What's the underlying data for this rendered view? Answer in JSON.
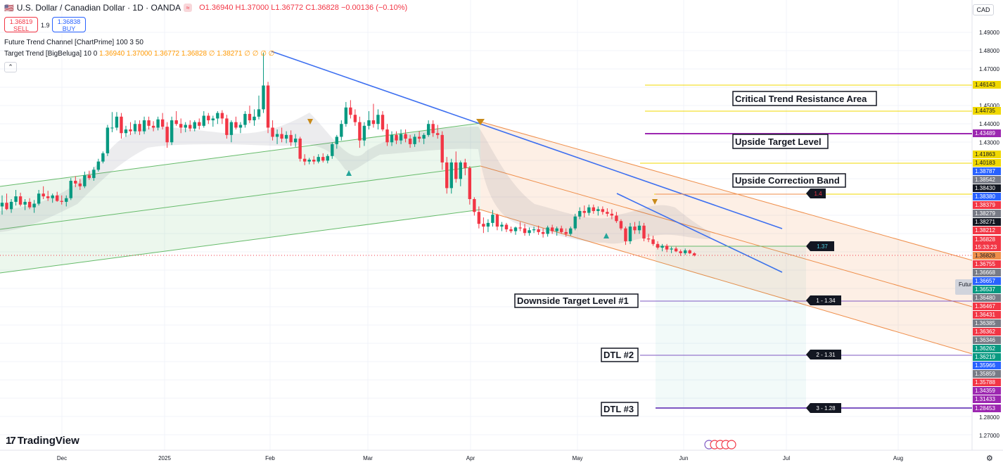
{
  "header": {
    "symbol": "U.S. Dollar / Canadian Dollar · 1D · OANDA",
    "flag_icon": "us-ca-flag-icon",
    "ohlc": "O1.36940 H1.37000 L1.36772 C1.36828 −0.00136 (−0.10%)"
  },
  "trade": {
    "sell_price": "1.36819",
    "sell_label": "SELL",
    "spread": "1.9",
    "buy_price": "1.36838",
    "buy_label": "BUY"
  },
  "indicators": {
    "ind1": "Future Trend Channel [ChartPrime] 100 3 50",
    "ind2_name": "Target Trend [BigBeluga] 10 0",
    "ind2_values": "1.36940 1.37000 1.36772 1.36828 ∅ 1.38271 ∅ ∅ ∅ ∅"
  },
  "currency": "CAD",
  "branding": "TradingView",
  "colors": {
    "up": "#089981",
    "down": "#f23645",
    "trendline": "#3d6ff0",
    "orange": "#ef8e4a",
    "green_channel": "#66bb6a",
    "yellow": "#f0d800",
    "purple": "#9c27b0"
  },
  "chart_data": {
    "type": "candlestick",
    "y_axis_ticks": [
      1.49,
      1.48,
      1.47,
      1.45,
      1.44,
      1.43,
      1.28,
      1.27
    ],
    "x_axis_labels": [
      "Dec",
      "2025",
      "Feb",
      "Mar",
      "Apr",
      "May",
      "Jun",
      "Jul",
      "Aug"
    ],
    "current_price": "1.36828",
    "countdown": "15:33:23",
    "price_labels": [
      {
        "value": "1.46143",
        "bg": "#f0d800",
        "fg": "#131722"
      },
      {
        "value": "1.44735",
        "bg": "#f0d800",
        "fg": "#131722"
      },
      {
        "value": "1.43489",
        "bg": "#9c27b0",
        "fg": "#ffffff"
      },
      {
        "value": "1.41863",
        "bg": "#f0d800",
        "fg": "#131722"
      },
      {
        "value": "1.40183",
        "bg": "#f0d800",
        "fg": "#131722"
      },
      {
        "value": "1.38787",
        "bg": "#2962ff",
        "fg": "#ffffff"
      },
      {
        "value": "1.38542",
        "bg": "#787b86",
        "fg": "#ffffff"
      },
      {
        "value": "1.38430",
        "bg": "#131722",
        "fg": "#ffffff"
      },
      {
        "value": "1.38380",
        "bg": "#2962ff",
        "fg": "#ffffff"
      },
      {
        "value": "1.38379",
        "bg": "#f23645",
        "fg": "#ffffff"
      },
      {
        "value": "1.38279",
        "bg": "#787b86",
        "fg": "#ffffff"
      },
      {
        "value": "1.38271",
        "bg": "#131722",
        "fg": "#ffffff"
      },
      {
        "value": "1.38212",
        "bg": "#f23645",
        "fg": "#ffffff"
      },
      {
        "value": "1.36828",
        "bg": "#f23645",
        "fg": "#ffffff"
      },
      {
        "value": "1.36828",
        "bg": "#ef8e4a",
        "fg": "#131722"
      },
      {
        "value": "1.36755",
        "bg": "#f23645",
        "fg": "#ffffff"
      },
      {
        "value": "1.36668",
        "bg": "#787b86",
        "fg": "#ffffff"
      },
      {
        "value": "1.36657",
        "bg": "#2962ff",
        "fg": "#ffffff"
      },
      {
        "value": "1.36537",
        "bg": "#089981",
        "fg": "#ffffff"
      },
      {
        "value": "1.36480",
        "bg": "#787b86",
        "fg": "#ffffff"
      },
      {
        "value": "1.36467",
        "bg": "#f23645",
        "fg": "#ffffff"
      },
      {
        "value": "1.36431",
        "bg": "#f23645",
        "fg": "#ffffff"
      },
      {
        "value": "1.36385",
        "bg": "#787b86",
        "fg": "#ffffff"
      },
      {
        "value": "1.36362",
        "bg": "#f23645",
        "fg": "#ffffff"
      },
      {
        "value": "1.36346",
        "bg": "#787b86",
        "fg": "#ffffff"
      },
      {
        "value": "1.36262",
        "bg": "#089981",
        "fg": "#ffffff"
      },
      {
        "value": "1.36219",
        "bg": "#089981",
        "fg": "#ffffff"
      },
      {
        "value": "1.35966",
        "bg": "#2962ff",
        "fg": "#ffffff"
      },
      {
        "value": "1.35859",
        "bg": "#787b86",
        "fg": "#ffffff"
      },
      {
        "value": "1.35788",
        "bg": "#f23645",
        "fg": "#ffffff"
      },
      {
        "value": "1.34359",
        "bg": "#9c27b0",
        "fg": "#ffffff"
      },
      {
        "value": "1.31433",
        "bg": "#9c27b0",
        "fg": "#ffffff"
      },
      {
        "value": "1.28453",
        "bg": "#9c27b0",
        "fg": "#ffffff"
      }
    ],
    "annotations": [
      "Critical Trend Resistance Area",
      "Upside Target Level",
      "Upside Correction Band",
      "Downside Target Level #1",
      "DTL #2",
      "DTL #3"
    ],
    "target_tags": [
      "1.4",
      "1.37",
      "1 - 1.34",
      "2 - 1.31",
      "3 - 1.28"
    ],
    "channel_label": "Futur",
    "candles": [
      {
        "o": 1.395,
        "h": 1.401,
        "l": 1.3905,
        "c": 1.397
      },
      {
        "o": 1.397,
        "h": 1.402,
        "l": 1.393,
        "c": 1.3935
      },
      {
        "o": 1.3935,
        "h": 1.399,
        "l": 1.3915,
        "c": 1.3975
      },
      {
        "o": 1.3975,
        "h": 1.404,
        "l": 1.3955,
        "c": 1.4005
      },
      {
        "o": 1.4005,
        "h": 1.4025,
        "l": 1.395,
        "c": 1.396
      },
      {
        "o": 1.396,
        "h": 1.399,
        "l": 1.393,
        "c": 1.3975
      },
      {
        "o": 1.3975,
        "h": 1.3995,
        "l": 1.3935,
        "c": 1.3945
      },
      {
        "o": 1.3945,
        "h": 1.3985,
        "l": 1.3915,
        "c": 1.3965
      },
      {
        "o": 1.3965,
        "h": 1.404,
        "l": 1.3955,
        "c": 1.402
      },
      {
        "o": 1.402,
        "h": 1.406,
        "l": 1.399,
        "c": 1.4005
      },
      {
        "o": 1.4005,
        "h": 1.4035,
        "l": 1.398,
        "c": 1.3995
      },
      {
        "o": 1.3995,
        "h": 1.402,
        "l": 1.397,
        "c": 1.401
      },
      {
        "o": 1.401,
        "h": 1.403,
        "l": 1.3975,
        "c": 1.398
      },
      {
        "o": 1.398,
        "h": 1.401,
        "l": 1.396,
        "c": 1.3975
      },
      {
        "o": 1.3975,
        "h": 1.401,
        "l": 1.395,
        "c": 1.3995
      },
      {
        "o": 1.3995,
        "h": 1.4105,
        "l": 1.3985,
        "c": 1.409
      },
      {
        "o": 1.409,
        "h": 1.4115,
        "l": 1.4055,
        "c": 1.4075
      },
      {
        "o": 1.4075,
        "h": 1.41,
        "l": 1.404,
        "c": 1.406
      },
      {
        "o": 1.406,
        "h": 1.414,
        "l": 1.405,
        "c": 1.412
      },
      {
        "o": 1.412,
        "h": 1.4145,
        "l": 1.4095,
        "c": 1.4105
      },
      {
        "o": 1.4105,
        "h": 1.4165,
        "l": 1.409,
        "c": 1.415
      },
      {
        "o": 1.415,
        "h": 1.421,
        "l": 1.414,
        "c": 1.4195
      },
      {
        "o": 1.4195,
        "h": 1.425,
        "l": 1.4185,
        "c": 1.424
      },
      {
        "o": 1.424,
        "h": 1.4395,
        "l": 1.4225,
        "c": 1.438
      },
      {
        "o": 1.438,
        "h": 1.4465,
        "l": 1.4355,
        "c": 1.438
      },
      {
        "o": 1.438,
        "h": 1.4465,
        "l": 1.4365,
        "c": 1.444
      },
      {
        "o": 1.444,
        "h": 1.446,
        "l": 1.432,
        "c": 1.435
      },
      {
        "o": 1.435,
        "h": 1.439,
        "l": 1.433,
        "c": 1.437
      },
      {
        "o": 1.437,
        "h": 1.441,
        "l": 1.434,
        "c": 1.436
      },
      {
        "o": 1.436,
        "h": 1.442,
        "l": 1.4345,
        "c": 1.44
      },
      {
        "o": 1.44,
        "h": 1.442,
        "l": 1.434,
        "c": 1.436
      },
      {
        "o": 1.436,
        "h": 1.444,
        "l": 1.4345,
        "c": 1.442
      },
      {
        "o": 1.442,
        "h": 1.444,
        "l": 1.437,
        "c": 1.439
      },
      {
        "o": 1.439,
        "h": 1.4415,
        "l": 1.436,
        "c": 1.438
      },
      {
        "o": 1.438,
        "h": 1.444,
        "l": 1.4365,
        "c": 1.4425
      },
      {
        "o": 1.4425,
        "h": 1.446,
        "l": 1.437,
        "c": 1.4385
      },
      {
        "o": 1.4385,
        "h": 1.441,
        "l": 1.427,
        "c": 1.43
      },
      {
        "o": 1.43,
        "h": 1.444,
        "l": 1.4285,
        "c": 1.442
      },
      {
        "o": 1.442,
        "h": 1.447,
        "l": 1.439,
        "c": 1.44
      },
      {
        "o": 1.44,
        "h": 1.443,
        "l": 1.435,
        "c": 1.438
      },
      {
        "o": 1.438,
        "h": 1.441,
        "l": 1.4355,
        "c": 1.4395
      },
      {
        "o": 1.4395,
        "h": 1.442,
        "l": 1.436,
        "c": 1.4375
      },
      {
        "o": 1.4375,
        "h": 1.442,
        "l": 1.436,
        "c": 1.441
      },
      {
        "o": 1.441,
        "h": 1.443,
        "l": 1.437,
        "c": 1.439
      },
      {
        "o": 1.439,
        "h": 1.447,
        "l": 1.438,
        "c": 1.4445
      },
      {
        "o": 1.4445,
        "h": 1.446,
        "l": 1.44,
        "c": 1.442
      },
      {
        "o": 1.442,
        "h": 1.4445,
        "l": 1.4385,
        "c": 1.443
      },
      {
        "o": 1.443,
        "h": 1.447,
        "l": 1.44,
        "c": 1.446
      },
      {
        "o": 1.446,
        "h": 1.4475,
        "l": 1.44,
        "c": 1.443
      },
      {
        "o": 1.443,
        "h": 1.445,
        "l": 1.432,
        "c": 1.434
      },
      {
        "o": 1.434,
        "h": 1.442,
        "l": 1.43,
        "c": 1.441
      },
      {
        "o": 1.441,
        "h": 1.444,
        "l": 1.437,
        "c": 1.438
      },
      {
        "o": 1.438,
        "h": 1.441,
        "l": 1.435,
        "c": 1.4395
      },
      {
        "o": 1.4395,
        "h": 1.447,
        "l": 1.438,
        "c": 1.4455
      },
      {
        "o": 1.4455,
        "h": 1.45,
        "l": 1.4405,
        "c": 1.442
      },
      {
        "o": 1.442,
        "h": 1.448,
        "l": 1.439,
        "c": 1.444
      },
      {
        "o": 1.444,
        "h": 1.4555,
        "l": 1.4425,
        "c": 1.448
      },
      {
        "o": 1.448,
        "h": 1.479,
        "l": 1.446,
        "c": 1.461
      },
      {
        "o": 1.461,
        "h": 1.463,
        "l": 1.435,
        "c": 1.438
      },
      {
        "o": 1.438,
        "h": 1.442,
        "l": 1.431,
        "c": 1.433
      },
      {
        "o": 1.433,
        "h": 1.437,
        "l": 1.429,
        "c": 1.4345
      },
      {
        "o": 1.4345,
        "h": 1.438,
        "l": 1.43,
        "c": 1.432
      },
      {
        "o": 1.432,
        "h": 1.436,
        "l": 1.4295,
        "c": 1.434
      },
      {
        "o": 1.434,
        "h": 1.4365,
        "l": 1.428,
        "c": 1.43
      },
      {
        "o": 1.43,
        "h": 1.4345,
        "l": 1.4275,
        "c": 1.432
      },
      {
        "o": 1.432,
        "h": 1.433,
        "l": 1.4195,
        "c": 1.421
      },
      {
        "o": 1.421,
        "h": 1.4235,
        "l": 1.4175,
        "c": 1.4195
      },
      {
        "o": 1.4195,
        "h": 1.4215,
        "l": 1.418,
        "c": 1.4205
      },
      {
        "o": 1.4205,
        "h": 1.4225,
        "l": 1.418,
        "c": 1.4195
      },
      {
        "o": 1.4195,
        "h": 1.4235,
        "l": 1.4185,
        "c": 1.422
      },
      {
        "o": 1.422,
        "h": 1.424,
        "l": 1.419,
        "c": 1.42
      },
      {
        "o": 1.42,
        "h": 1.4235,
        "l": 1.4185,
        "c": 1.4225
      },
      {
        "o": 1.4225,
        "h": 1.43,
        "l": 1.421,
        "c": 1.429
      },
      {
        "o": 1.429,
        "h": 1.434,
        "l": 1.4265,
        "c": 1.433
      },
      {
        "o": 1.433,
        "h": 1.442,
        "l": 1.431,
        "c": 1.44
      },
      {
        "o": 1.44,
        "h": 1.452,
        "l": 1.4385,
        "c": 1.449
      },
      {
        "o": 1.449,
        "h": 1.453,
        "l": 1.443,
        "c": 1.445
      },
      {
        "o": 1.445,
        "h": 1.448,
        "l": 1.439,
        "c": 1.441
      },
      {
        "o": 1.441,
        "h": 1.444,
        "l": 1.427,
        "c": 1.431
      },
      {
        "o": 1.431,
        "h": 1.441,
        "l": 1.428,
        "c": 1.439
      },
      {
        "o": 1.439,
        "h": 1.447,
        "l": 1.437,
        "c": 1.442
      },
      {
        "o": 1.442,
        "h": 1.451,
        "l": 1.438,
        "c": 1.44
      },
      {
        "o": 1.44,
        "h": 1.448,
        "l": 1.437,
        "c": 1.445
      },
      {
        "o": 1.445,
        "h": 1.447,
        "l": 1.436,
        "c": 1.437
      },
      {
        "o": 1.437,
        "h": 1.44,
        "l": 1.428,
        "c": 1.43
      },
      {
        "o": 1.43,
        "h": 1.436,
        "l": 1.428,
        "c": 1.434
      },
      {
        "o": 1.434,
        "h": 1.436,
        "l": 1.429,
        "c": 1.431
      },
      {
        "o": 1.431,
        "h": 1.437,
        "l": 1.429,
        "c": 1.4345
      },
      {
        "o": 1.4345,
        "h": 1.437,
        "l": 1.43,
        "c": 1.432
      },
      {
        "o": 1.432,
        "h": 1.434,
        "l": 1.427,
        "c": 1.429
      },
      {
        "o": 1.429,
        "h": 1.4345,
        "l": 1.4275,
        "c": 1.433
      },
      {
        "o": 1.433,
        "h": 1.436,
        "l": 1.43,
        "c": 1.432
      },
      {
        "o": 1.432,
        "h": 1.435,
        "l": 1.429,
        "c": 1.434
      },
      {
        "o": 1.434,
        "h": 1.442,
        "l": 1.433,
        "c": 1.44
      },
      {
        "o": 1.44,
        "h": 1.442,
        "l": 1.433,
        "c": 1.435
      },
      {
        "o": 1.435,
        "h": 1.4395,
        "l": 1.432,
        "c": 1.434
      },
      {
        "o": 1.434,
        "h": 1.436,
        "l": 1.415,
        "c": 1.419
      },
      {
        "o": 1.419,
        "h": 1.422,
        "l": 1.402,
        "c": 1.405
      },
      {
        "o": 1.405,
        "h": 1.421,
        "l": 1.402,
        "c": 1.419
      },
      {
        "o": 1.419,
        "h": 1.425,
        "l": 1.408,
        "c": 1.41
      },
      {
        "o": 1.41,
        "h": 1.42,
        "l": 1.406,
        "c": 1.419
      },
      {
        "o": 1.419,
        "h": 1.421,
        "l": 1.412,
        "c": 1.416
      },
      {
        "o": 1.416,
        "h": 1.417,
        "l": 1.396,
        "c": 1.399
      },
      {
        "o": 1.399,
        "h": 1.4,
        "l": 1.39,
        "c": 1.392
      },
      {
        "o": 1.392,
        "h": 1.395,
        "l": 1.383,
        "c": 1.3855
      },
      {
        "o": 1.3855,
        "h": 1.389,
        "l": 1.3805,
        "c": 1.384
      },
      {
        "o": 1.384,
        "h": 1.388,
        "l": 1.381,
        "c": 1.386
      },
      {
        "o": 1.386,
        "h": 1.393,
        "l": 1.384,
        "c": 1.3905
      },
      {
        "o": 1.3905,
        "h": 1.391,
        "l": 1.382,
        "c": 1.384
      },
      {
        "o": 1.384,
        "h": 1.3865,
        "l": 1.3815,
        "c": 1.385
      },
      {
        "o": 1.385,
        "h": 1.386,
        "l": 1.381,
        "c": 1.3825
      },
      {
        "o": 1.3825,
        "h": 1.384,
        "l": 1.3805,
        "c": 1.3815
      },
      {
        "o": 1.3815,
        "h": 1.384,
        "l": 1.3795,
        "c": 1.3835
      },
      {
        "o": 1.3835,
        "h": 1.3865,
        "l": 1.3815,
        "c": 1.383
      },
      {
        "o": 1.383,
        "h": 1.3855,
        "l": 1.379,
        "c": 1.3805
      },
      {
        "o": 1.3805,
        "h": 1.3835,
        "l": 1.379,
        "c": 1.382
      },
      {
        "o": 1.382,
        "h": 1.384,
        "l": 1.3805,
        "c": 1.3825
      },
      {
        "o": 1.3825,
        "h": 1.3845,
        "l": 1.3795,
        "c": 1.381
      },
      {
        "o": 1.381,
        "h": 1.383,
        "l": 1.378,
        "c": 1.38
      },
      {
        "o": 1.38,
        "h": 1.3845,
        "l": 1.3785,
        "c": 1.3835
      },
      {
        "o": 1.3835,
        "h": 1.385,
        "l": 1.38,
        "c": 1.3815
      },
      {
        "o": 1.3815,
        "h": 1.384,
        "l": 1.379,
        "c": 1.383
      },
      {
        "o": 1.383,
        "h": 1.3845,
        "l": 1.38,
        "c": 1.381
      },
      {
        "o": 1.381,
        "h": 1.383,
        "l": 1.3785,
        "c": 1.38
      },
      {
        "o": 1.38,
        "h": 1.384,
        "l": 1.379,
        "c": 1.383
      },
      {
        "o": 1.383,
        "h": 1.391,
        "l": 1.382,
        "c": 1.3895
      },
      {
        "o": 1.3895,
        "h": 1.3945,
        "l": 1.388,
        "c": 1.3925
      },
      {
        "o": 1.3925,
        "h": 1.3955,
        "l": 1.389,
        "c": 1.3915
      },
      {
        "o": 1.3915,
        "h": 1.396,
        "l": 1.39,
        "c": 1.3945
      },
      {
        "o": 1.3945,
        "h": 1.396,
        "l": 1.391,
        "c": 1.3925
      },
      {
        "o": 1.3925,
        "h": 1.395,
        "l": 1.39,
        "c": 1.3935
      },
      {
        "o": 1.3935,
        "h": 1.395,
        "l": 1.3905,
        "c": 1.392
      },
      {
        "o": 1.392,
        "h": 1.394,
        "l": 1.3895,
        "c": 1.391
      },
      {
        "o": 1.391,
        "h": 1.3935,
        "l": 1.388,
        "c": 1.39
      },
      {
        "o": 1.39,
        "h": 1.392,
        "l": 1.386,
        "c": 1.387
      },
      {
        "o": 1.387,
        "h": 1.388,
        "l": 1.382,
        "c": 1.383
      },
      {
        "o": 1.383,
        "h": 1.384,
        "l": 1.374,
        "c": 1.376
      },
      {
        "o": 1.376,
        "h": 1.386,
        "l": 1.3745,
        "c": 1.384
      },
      {
        "o": 1.384,
        "h": 1.3865,
        "l": 1.38,
        "c": 1.382
      },
      {
        "o": 1.382,
        "h": 1.387,
        "l": 1.38,
        "c": 1.3845
      },
      {
        "o": 1.3845,
        "h": 1.386,
        "l": 1.376,
        "c": 1.3775
      },
      {
        "o": 1.3775,
        "h": 1.38,
        "l": 1.3755,
        "c": 1.377
      },
      {
        "o": 1.377,
        "h": 1.379,
        "l": 1.3735,
        "c": 1.3745
      },
      {
        "o": 1.3745,
        "h": 1.376,
        "l": 1.3715,
        "c": 1.3725
      },
      {
        "o": 1.3725,
        "h": 1.3745,
        "l": 1.3705,
        "c": 1.3735
      },
      {
        "o": 1.3735,
        "h": 1.3745,
        "l": 1.37,
        "c": 1.3715
      },
      {
        "o": 1.3715,
        "h": 1.373,
        "l": 1.3695,
        "c": 1.372
      },
      {
        "o": 1.372,
        "h": 1.373,
        "l": 1.37,
        "c": 1.3705
      },
      {
        "o": 1.3705,
        "h": 1.3715,
        "l": 1.368,
        "c": 1.3695
      },
      {
        "o": 1.3695,
        "h": 1.372,
        "l": 1.3685,
        "c": 1.371
      },
      {
        "o": 1.371,
        "h": 1.3715,
        "l": 1.369,
        "c": 1.3694
      },
      {
        "o": 1.3694,
        "h": 1.37,
        "l": 1.36772,
        "c": 1.36828
      }
    ]
  }
}
